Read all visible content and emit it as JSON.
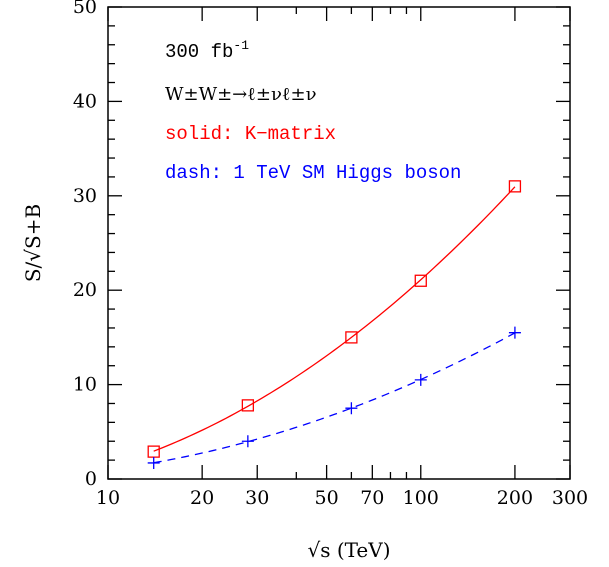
{
  "chart_data": {
    "type": "line",
    "xscale": "log",
    "xlim": [
      10,
      300
    ],
    "ylim": [
      0,
      50
    ],
    "xlabel": "√s (TeV)",
    "ylabel": "S/√S+B",
    "xticks_major": [
      10,
      20,
      30,
      50,
      70,
      100,
      200,
      300
    ],
    "yticks_major": [
      0,
      10,
      20,
      30,
      40,
      50
    ],
    "grid": false,
    "annotations": {
      "luminosity": "300 fb",
      "luminosity_exp": "-1",
      "process": "W±W±→ℓ±νℓ±ν",
      "solid_label": "solid: K−matrix",
      "dash_label": "dash: 1 TeV SM Higgs boson"
    },
    "series": [
      {
        "color": "#ff0000",
        "line_style": "solid",
        "marker": "square",
        "x": [
          14,
          28,
          60,
          100,
          200
        ],
        "y": [
          2.9,
          7.8,
          15.0,
          21.0,
          31.0
        ]
      },
      {
        "color": "#0000ff",
        "line_style": "dashed",
        "marker": "plus",
        "x": [
          14,
          28,
          60,
          100,
          200
        ],
        "y": [
          1.7,
          4.0,
          7.5,
          10.5,
          15.5
        ]
      }
    ]
  }
}
